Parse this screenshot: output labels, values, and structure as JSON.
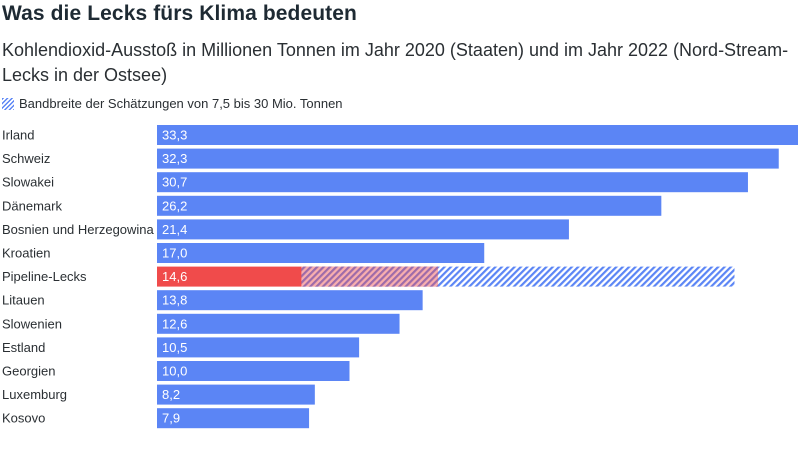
{
  "title": "Was die Lecks fürs Klima bedeuten",
  "subtitle": "Kohlendioxid-Ausstoß in Millionen Tonnen im Jahr 2020 (Staaten) und im Jahr 2022 (Nord-Stream-Lecks in der Ostsee)",
  "legend": {
    "label": "Bandbreite der Schätzungen von 7,5 bis 30 Mio. Tonnen"
  },
  "colors": {
    "bar": "#5b85f5",
    "highlight": "#f04b4b",
    "hatch": "#5b85f5"
  },
  "chart_data": {
    "type": "bar",
    "orientation": "horizontal",
    "categories": [
      "Irland",
      "Schweiz",
      "Slowakei",
      "Dänemark",
      "Bosnien und Herzegowina",
      "Kroatien",
      "Pipeline-Lecks",
      "Litauen",
      "Slowenien",
      "Estland",
      "Georgien",
      "Luxemburg",
      "Kosovo"
    ],
    "values": [
      33.3,
      32.3,
      30.7,
      26.2,
      21.4,
      17.0,
      14.6,
      13.8,
      12.6,
      10.5,
      10.0,
      8.2,
      7.9
    ],
    "value_labels": [
      "33,3",
      "32,3",
      "30,7",
      "26,2",
      "21,4",
      "17,0",
      "14,6",
      "13,8",
      "12,6",
      "10,5",
      "10,0",
      "8,2",
      "7,9"
    ],
    "highlight_category": "Pipeline-Lecks",
    "range": {
      "category": "Pipeline-Lecks",
      "min": 7.5,
      "max": 30
    },
    "xlim": [
      0,
      33.3
    ],
    "grid": false
  }
}
